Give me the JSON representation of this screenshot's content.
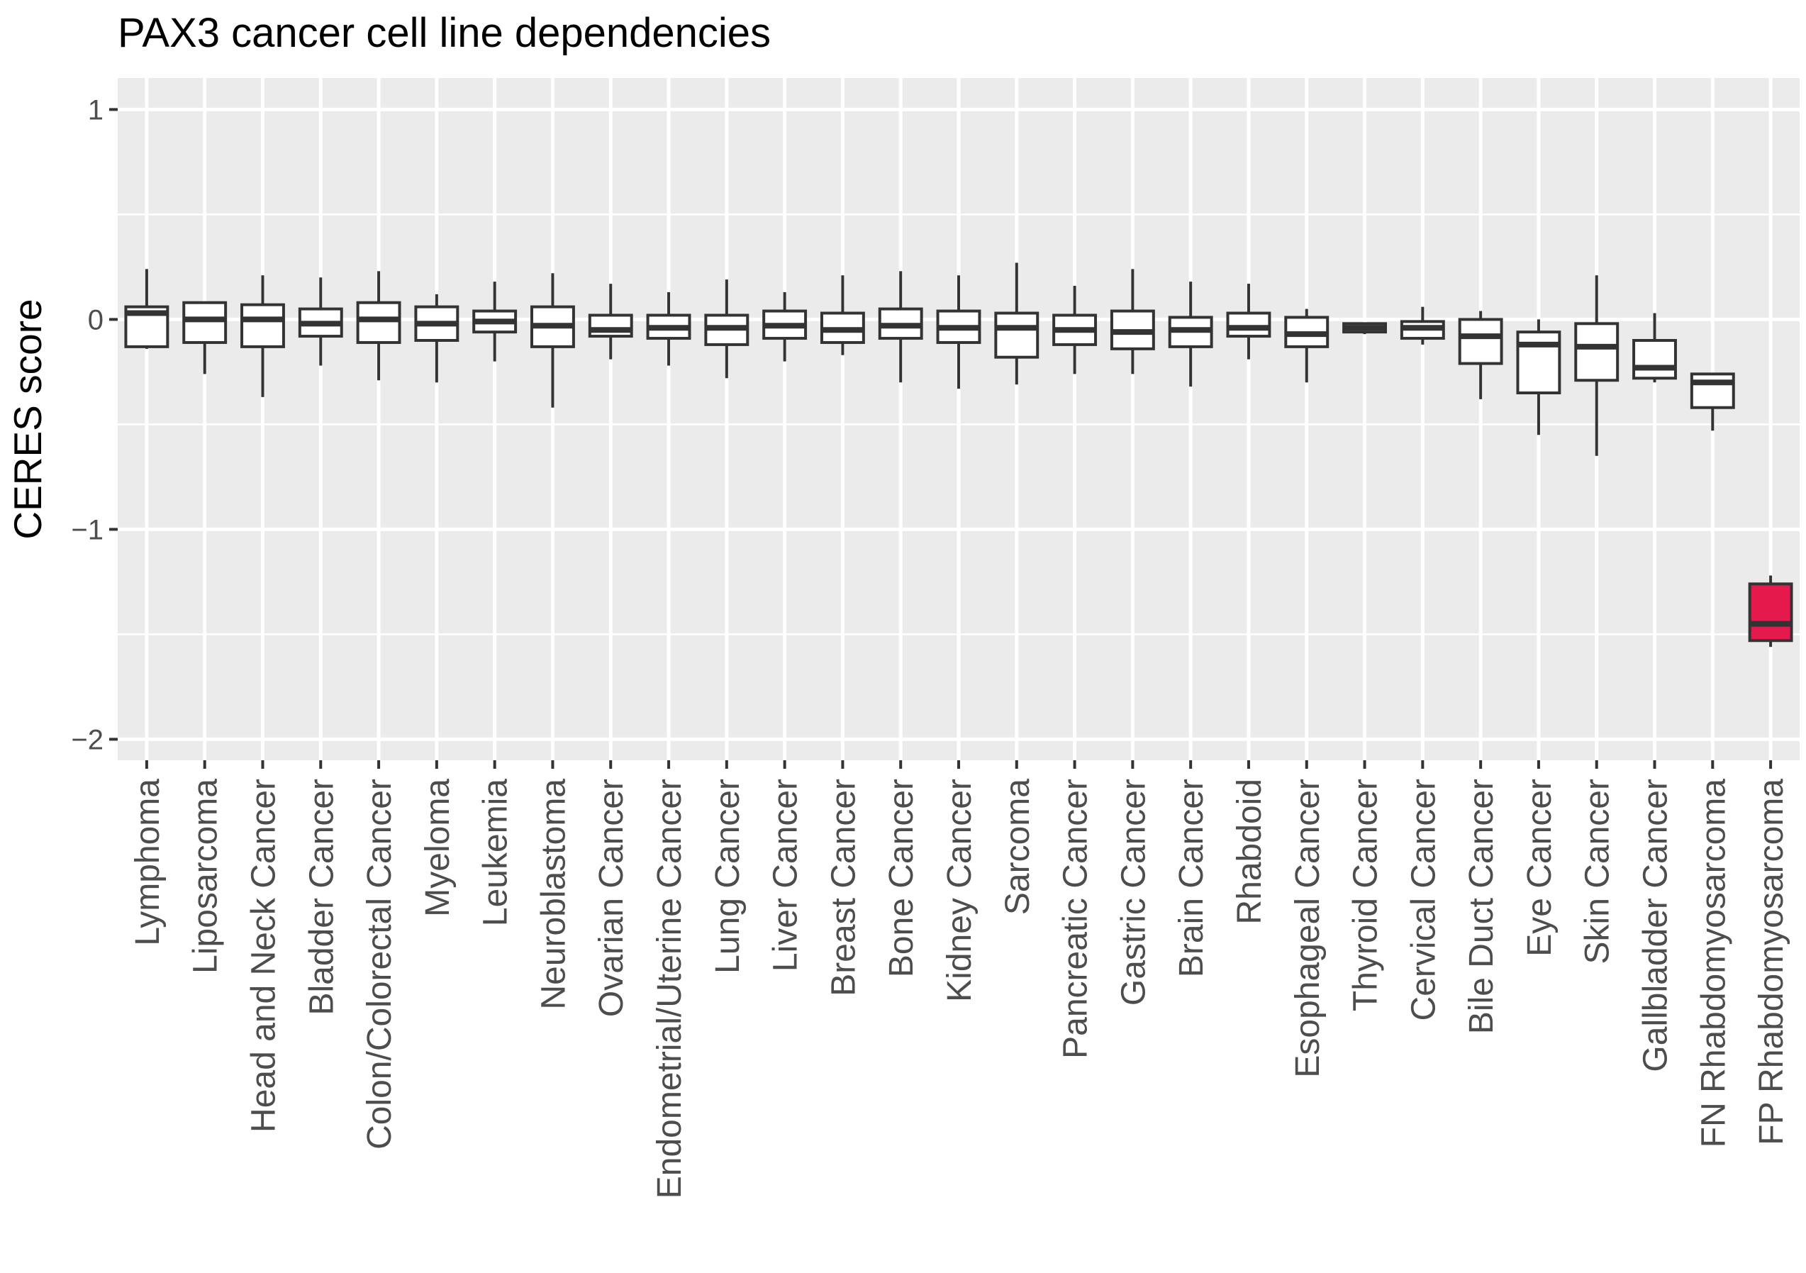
{
  "chart_data": {
    "type": "boxplot",
    "title": "PAX3 cancer cell line dependencies",
    "xlabel": "",
    "ylabel": "CERES score",
    "ylim": [
      -2.1,
      1.15
    ],
    "yticks": [
      1,
      0,
      -1,
      -2
    ],
    "ytick_labels": [
      "1",
      "0",
      "−1",
      "−2"
    ],
    "grid": true,
    "legend": "none",
    "colors": {
      "panel_background": "#ebebeb",
      "grid": "#ffffff",
      "box_outline": "#333333",
      "box_fill": "#ffffff",
      "highlight_fill": "#e31a4b",
      "tick_text": "#4d4d4d"
    },
    "categories": [
      "Lymphoma",
      "Liposarcoma",
      "Head and Neck Cancer",
      "Bladder Cancer",
      "Colon/Colorectal Cancer",
      "Myeloma",
      "Leukemia",
      "Neuroblastoma",
      "Ovarian Cancer",
      "Endometrial/Uterine Cancer",
      "Lung Cancer",
      "Liver Cancer",
      "Breast Cancer",
      "Bone Cancer",
      "Kidney Cancer",
      "Sarcoma",
      "Pancreatic Cancer",
      "Gastric Cancer",
      "Brain Cancer",
      "Rhabdoid",
      "Esophageal Cancer",
      "Thyroid Cancer",
      "Cervical Cancer",
      "Bile Duct Cancer",
      "Eye Cancer",
      "Skin Cancer",
      "Gallbladder Cancer",
      "FN Rhabdomyosarcoma",
      "FP Rhabdomyosarcoma"
    ],
    "boxes": [
      {
        "min": -0.14,
        "q1": -0.13,
        "median": 0.03,
        "q3": 0.06,
        "max": 0.24
      },
      {
        "min": -0.26,
        "q1": -0.11,
        "median": 0.0,
        "q3": 0.08,
        "max": 0.08
      },
      {
        "min": -0.37,
        "q1": -0.13,
        "median": 0.0,
        "q3": 0.07,
        "max": 0.21
      },
      {
        "min": -0.22,
        "q1": -0.08,
        "median": -0.02,
        "q3": 0.05,
        "max": 0.2
      },
      {
        "min": -0.29,
        "q1": -0.11,
        "median": 0.0,
        "q3": 0.08,
        "max": 0.23
      },
      {
        "min": -0.3,
        "q1": -0.1,
        "median": -0.02,
        "q3": 0.06,
        "max": 0.12
      },
      {
        "min": -0.2,
        "q1": -0.06,
        "median": -0.01,
        "q3": 0.04,
        "max": 0.18
      },
      {
        "min": -0.42,
        "q1": -0.13,
        "median": -0.03,
        "q3": 0.06,
        "max": 0.22
      },
      {
        "min": -0.19,
        "q1": -0.08,
        "median": -0.05,
        "q3": 0.02,
        "max": 0.17
      },
      {
        "min": -0.22,
        "q1": -0.09,
        "median": -0.04,
        "q3": 0.02,
        "max": 0.13
      },
      {
        "min": -0.28,
        "q1": -0.12,
        "median": -0.04,
        "q3": 0.02,
        "max": 0.19
      },
      {
        "min": -0.2,
        "q1": -0.09,
        "median": -0.03,
        "q3": 0.04,
        "max": 0.13
      },
      {
        "min": -0.17,
        "q1": -0.11,
        "median": -0.05,
        "q3": 0.03,
        "max": 0.21
      },
      {
        "min": -0.3,
        "q1": -0.09,
        "median": -0.03,
        "q3": 0.05,
        "max": 0.23
      },
      {
        "min": -0.33,
        "q1": -0.11,
        "median": -0.04,
        "q3": 0.04,
        "max": 0.21
      },
      {
        "min": -0.31,
        "q1": -0.18,
        "median": -0.04,
        "q3": 0.03,
        "max": 0.27
      },
      {
        "min": -0.26,
        "q1": -0.12,
        "median": -0.05,
        "q3": 0.02,
        "max": 0.16
      },
      {
        "min": -0.26,
        "q1": -0.14,
        "median": -0.06,
        "q3": 0.04,
        "max": 0.24
      },
      {
        "min": -0.32,
        "q1": -0.13,
        "median": -0.05,
        "q3": 0.01,
        "max": 0.18
      },
      {
        "min": -0.19,
        "q1": -0.08,
        "median": -0.04,
        "q3": 0.03,
        "max": 0.17
      },
      {
        "min": -0.3,
        "q1": -0.13,
        "median": -0.07,
        "q3": 0.01,
        "max": 0.05
      },
      {
        "min": -0.07,
        "q1": -0.06,
        "median": -0.04,
        "q3": -0.02,
        "max": -0.02
      },
      {
        "min": -0.12,
        "q1": -0.09,
        "median": -0.04,
        "q3": -0.01,
        "max": 0.06
      },
      {
        "min": -0.38,
        "q1": -0.21,
        "median": -0.08,
        "q3": 0.0,
        "max": 0.04
      },
      {
        "min": -0.55,
        "q1": -0.35,
        "median": -0.12,
        "q3": -0.06,
        "max": 0.0
      },
      {
        "min": -0.65,
        "q1": -0.29,
        "median": -0.13,
        "q3": -0.02,
        "max": 0.21
      },
      {
        "min": -0.3,
        "q1": -0.28,
        "median": -0.23,
        "q3": -0.1,
        "max": 0.03
      },
      {
        "min": -0.53,
        "q1": -0.42,
        "median": -0.3,
        "q3": -0.26,
        "max": -0.26
      },
      {
        "min": -1.56,
        "q1": -1.53,
        "median": -1.45,
        "q3": -1.26,
        "max": -1.22
      }
    ],
    "highlight_category": "FP Rhabdomyosarcoma"
  }
}
